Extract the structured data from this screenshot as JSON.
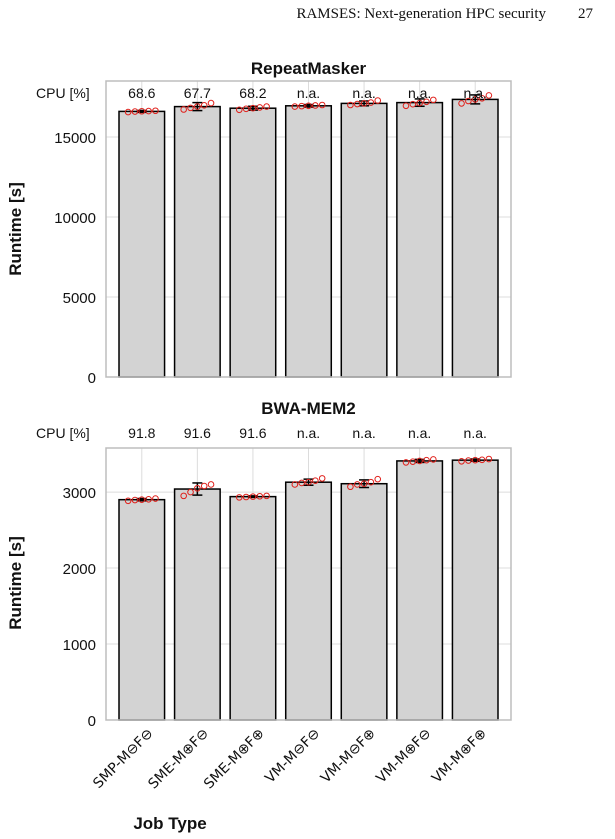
{
  "header": {
    "running_title": "RAMSES: Next-generation HPC security",
    "page_number": "27"
  },
  "figure": {
    "x_axis_title": "Job Type",
    "cpu_label": "CPU [%]"
  },
  "colors": {
    "bar_fill": "#d3d3d3",
    "bar_edge": "#000000",
    "point": "#e0201b",
    "grid": "#dcdcdc",
    "frame": "#bdbdbd"
  },
  "chart_data": [
    {
      "type": "bar",
      "title": "RepeatMasker",
      "ylabel": "Runtime [s]",
      "xlabel": "",
      "ylim": [
        0,
        18500
      ],
      "yticks": [
        0,
        5000,
        10000,
        15000
      ],
      "grid": true,
      "categories": [
        "SMP-M⊖F⊖",
        "SME-M⊕F⊖",
        "SME-M⊕F⊕",
        "VM-M⊖F⊖",
        "VM-M⊖F⊕",
        "VM-M⊕F⊖",
        "VM-M⊕F⊕"
      ],
      "values": [
        16600,
        16900,
        16800,
        16950,
        17100,
        17150,
        17350
      ],
      "errors": [
        60,
        250,
        120,
        80,
        150,
        230,
        280
      ],
      "cpu_percent": [
        "68.6",
        "67.7",
        "68.2",
        "n.a.",
        "n.a.",
        "n.a.",
        "n.a."
      ],
      "points": [
        [
          16560,
          16590,
          16610,
          16620,
          16640
        ],
        [
          16720,
          16820,
          16900,
          16980,
          17120
        ],
        [
          16700,
          16760,
          16800,
          16850,
          16900
        ],
        [
          16900,
          16930,
          16950,
          16970,
          17000
        ],
        [
          17000,
          17060,
          17100,
          17150,
          17280
        ],
        [
          16950,
          17050,
          17120,
          17200,
          17320
        ],
        [
          17100,
          17250,
          17350,
          17420,
          17600
        ]
      ]
    },
    {
      "type": "bar",
      "title": "BWA-MEM2",
      "ylabel": "Runtime [s]",
      "xlabel": "",
      "ylim": [
        0,
        3580
      ],
      "yticks": [
        0,
        1000,
        2000,
        3000
      ],
      "grid": true,
      "categories": [
        "SMP-M⊖F⊖",
        "SME-M⊕F⊖",
        "SME-M⊕F⊕",
        "VM-M⊖F⊖",
        "VM-M⊖F⊕",
        "VM-M⊕F⊖",
        "VM-M⊕F⊕"
      ],
      "values": [
        2900,
        3040,
        2940,
        3130,
        3110,
        3410,
        3420
      ],
      "errors": [
        15,
        80,
        10,
        40,
        50,
        20,
        15
      ],
      "cpu_percent": [
        "91.8",
        "91.6",
        "91.6",
        "n.a.",
        "n.a.",
        "n.a.",
        "n.a."
      ],
      "points": [
        [
          2885,
          2895,
          2900,
          2905,
          2915
        ],
        [
          2950,
          3000,
          3050,
          3080,
          3100
        ],
        [
          2930,
          2935,
          2940,
          2945,
          2950
        ],
        [
          3100,
          3120,
          3130,
          3150,
          3180
        ],
        [
          3070,
          3100,
          3110,
          3130,
          3170
        ],
        [
          3390,
          3400,
          3410,
          3420,
          3430
        ],
        [
          3405,
          3415,
          3420,
          3425,
          3435
        ]
      ]
    }
  ]
}
